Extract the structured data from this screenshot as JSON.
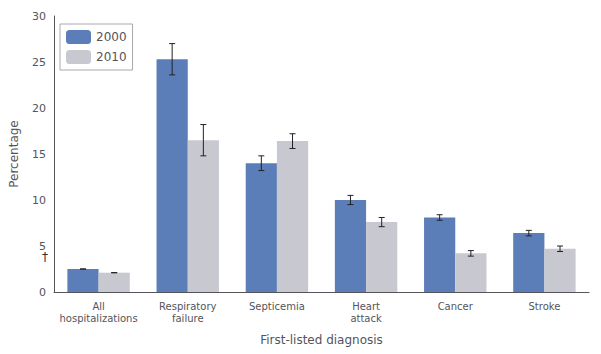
{
  "chart_data": {
    "type": "bar",
    "categories": [
      "All\nhospitalizations",
      "Respiratory\nfailure",
      "Septicemia",
      "Heart\nattack",
      "Cancer",
      "Stroke"
    ],
    "series": [
      {
        "name": "2000",
        "color": "#5B7DB8",
        "values": [
          2.5,
          25.3,
          14.0,
          10.0,
          8.1,
          6.4
        ],
        "errors": [
          0.0,
          1.7,
          0.8,
          0.5,
          0.3,
          0.3
        ]
      },
      {
        "name": "2010",
        "color": "#C8C8D0",
        "values": [
          2.1,
          16.5,
          16.4,
          7.6,
          4.2,
          4.7
        ],
        "errors": [
          0.0,
          1.7,
          0.8,
          0.5,
          0.3,
          0.3
        ]
      }
    ],
    "xlabel": "First-listed diagnosis",
    "ylabel": "Percentage",
    "ylim": [
      0,
      30
    ],
    "yticks": [
      0,
      5,
      10,
      15,
      20,
      25,
      30
    ],
    "annotations": [
      {
        "text": "†",
        "category": "All\nhospitalizations",
        "y": 3.2
      }
    ],
    "legend": "upper left",
    "grid": false
  }
}
